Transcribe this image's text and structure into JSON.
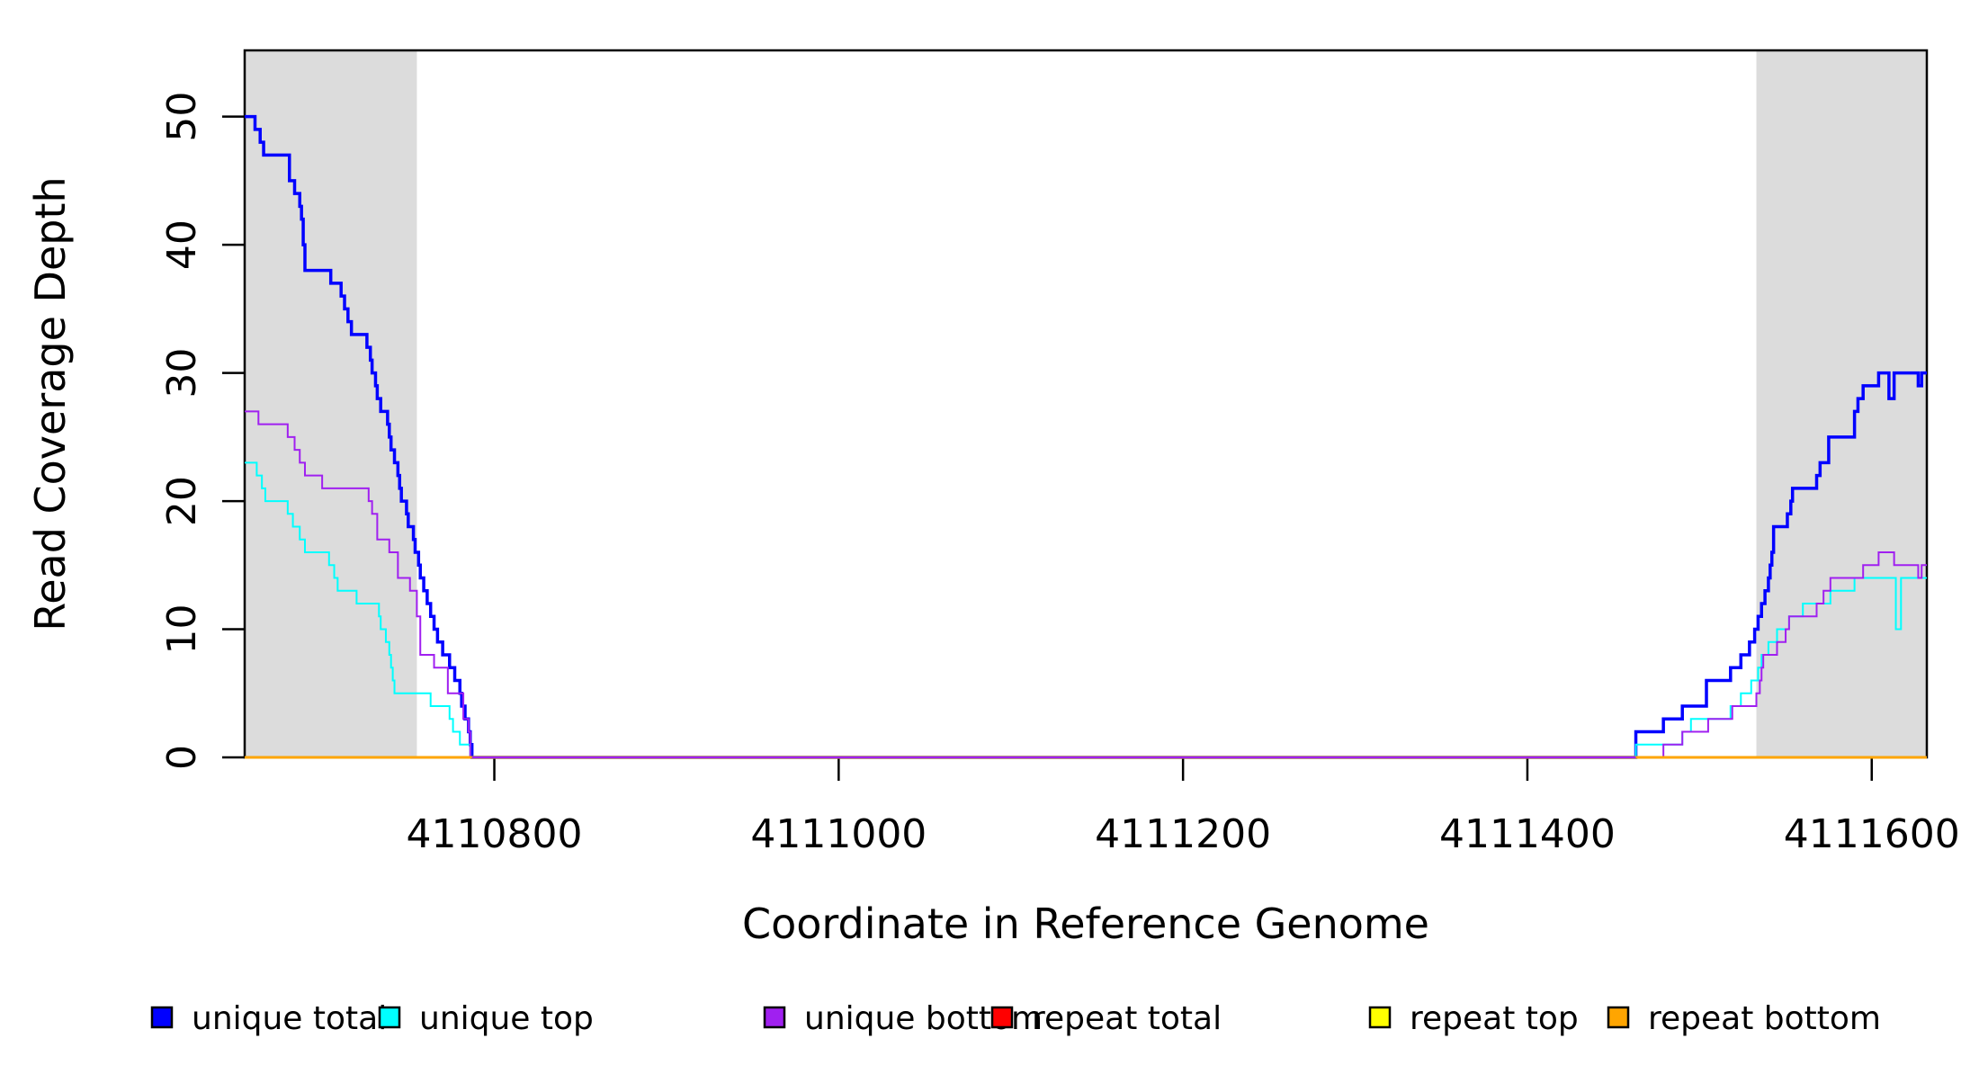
{
  "chart_data": {
    "type": "line",
    "subtype": "step",
    "title": "",
    "xlabel": "Coordinate in Reference Genome",
    "ylabel": "Read Coverage Depth",
    "xlim": [
      4110655,
      4111632
    ],
    "ylim": [
      0,
      55.17
    ],
    "x_ticks": [
      4110800,
      4111000,
      4111200,
      4111400,
      4111600
    ],
    "y_ticks": [
      0,
      10,
      20,
      30,
      40,
      50
    ],
    "grid": false,
    "box": true,
    "shade_color": "#DCDCDC",
    "shaded_regions": [
      {
        "x1": 4110655,
        "x2": 4110755
      },
      {
        "x1": 4111533,
        "x2": 4111632
      }
    ],
    "series": [
      {
        "name": "unique total",
        "color": "#0000FF",
        "width": 3.5,
        "points": [
          [
            4110655,
            50
          ],
          [
            4110661,
            49
          ],
          [
            4110664,
            48
          ],
          [
            4110666,
            47
          ],
          [
            4110681,
            45
          ],
          [
            4110684,
            44
          ],
          [
            4110687,
            43
          ],
          [
            4110688,
            42
          ],
          [
            4110689,
            40
          ],
          [
            4110690,
            38
          ],
          [
            4110705,
            37
          ],
          [
            4110711,
            36
          ],
          [
            4110713,
            35
          ],
          [
            4110715,
            34
          ],
          [
            4110717,
            33
          ],
          [
            4110726,
            32
          ],
          [
            4110728,
            31
          ],
          [
            4110729,
            30
          ],
          [
            4110731,
            29
          ],
          [
            4110732,
            28
          ],
          [
            4110734,
            27
          ],
          [
            4110738,
            26
          ],
          [
            4110739,
            25
          ],
          [
            4110740,
            24
          ],
          [
            4110742,
            23
          ],
          [
            4110744,
            22
          ],
          [
            4110745,
            21
          ],
          [
            4110746,
            20
          ],
          [
            4110749,
            19
          ],
          [
            4110750,
            18
          ],
          [
            4110753,
            17
          ],
          [
            4110754,
            16
          ],
          [
            4110756,
            15
          ],
          [
            4110757,
            14
          ],
          [
            4110759,
            13
          ],
          [
            4110761,
            12
          ],
          [
            4110763,
            11
          ],
          [
            4110765,
            10
          ],
          [
            4110767,
            9
          ],
          [
            4110770,
            8
          ],
          [
            4110774,
            7
          ],
          [
            4110777,
            6
          ],
          [
            4110780,
            5
          ],
          [
            4110781,
            4
          ],
          [
            4110783,
            3
          ],
          [
            4110785,
            2
          ],
          [
            4110786,
            1
          ],
          [
            4110787,
            0
          ],
          [
            4111463,
            2
          ],
          [
            4111479,
            3
          ],
          [
            4111490,
            4
          ],
          [
            4111504,
            6
          ],
          [
            4111518,
            7
          ],
          [
            4111524,
            8
          ],
          [
            4111529,
            9
          ],
          [
            4111532,
            10
          ],
          [
            4111534,
            11
          ],
          [
            4111536,
            12
          ],
          [
            4111538,
            13
          ],
          [
            4111540,
            14
          ],
          [
            4111541,
            15
          ],
          [
            4111542,
            16
          ],
          [
            4111543,
            18
          ],
          [
            4111551,
            19
          ],
          [
            4111553,
            20
          ],
          [
            4111554,
            21
          ],
          [
            4111568,
            22
          ],
          [
            4111570,
            23
          ],
          [
            4111575,
            25
          ],
          [
            4111590,
            27
          ],
          [
            4111592,
            28
          ],
          [
            4111595,
            29
          ],
          [
            4111604,
            30
          ],
          [
            4111610,
            28
          ],
          [
            4111613,
            30
          ],
          [
            4111627,
            29
          ],
          [
            4111629,
            30
          ]
        ]
      },
      {
        "name": "unique top",
        "color": "#00FFFF",
        "width": 2,
        "points": [
          [
            4110655,
            23
          ],
          [
            4110662,
            22
          ],
          [
            4110665,
            21
          ],
          [
            4110667,
            20
          ],
          [
            4110680,
            19
          ],
          [
            4110683,
            18
          ],
          [
            4110687,
            17
          ],
          [
            4110690,
            16
          ],
          [
            4110704,
            15
          ],
          [
            4110707,
            14
          ],
          [
            4110709,
            13
          ],
          [
            4110720,
            12
          ],
          [
            4110733,
            11
          ],
          [
            4110734,
            10
          ],
          [
            4110737,
            9
          ],
          [
            4110739,
            8
          ],
          [
            4110740,
            7
          ],
          [
            4110741,
            6
          ],
          [
            4110742,
            5
          ],
          [
            4110763,
            4
          ],
          [
            4110774,
            3
          ],
          [
            4110776,
            2
          ],
          [
            4110780,
            1
          ],
          [
            4110786,
            0
          ],
          [
            4111463,
            1
          ],
          [
            4111490,
            2
          ],
          [
            4111495,
            3
          ],
          [
            4111518,
            4
          ],
          [
            4111524,
            5
          ],
          [
            4111530,
            6
          ],
          [
            4111534,
            7
          ],
          [
            4111536,
            8
          ],
          [
            4111540,
            9
          ],
          [
            4111545,
            10
          ],
          [
            4111552,
            11
          ],
          [
            4111560,
            12
          ],
          [
            4111576,
            13
          ],
          [
            4111590,
            14
          ],
          [
            4111614,
            10
          ],
          [
            4111617,
            14
          ]
        ]
      },
      {
        "name": "unique bottom",
        "color": "#A020F0",
        "width": 2,
        "points": [
          [
            4110655,
            27
          ],
          [
            4110663,
            26
          ],
          [
            4110680,
            25
          ],
          [
            4110684,
            24
          ],
          [
            4110687,
            23
          ],
          [
            4110690,
            22
          ],
          [
            4110700,
            21
          ],
          [
            4110727,
            20
          ],
          [
            4110729,
            19
          ],
          [
            4110732,
            17
          ],
          [
            4110739,
            16
          ],
          [
            4110744,
            14
          ],
          [
            4110751,
            13
          ],
          [
            4110755,
            11
          ],
          [
            4110757,
            8
          ],
          [
            4110765,
            7
          ],
          [
            4110773,
            5
          ],
          [
            4110782,
            3
          ],
          [
            4110785,
            2
          ],
          [
            4110786,
            0
          ],
          [
            4111479,
            1
          ],
          [
            4111490,
            2
          ],
          [
            4111505,
            3
          ],
          [
            4111519,
            4
          ],
          [
            4111533,
            5
          ],
          [
            4111535,
            6
          ],
          [
            4111536,
            7
          ],
          [
            4111537,
            8
          ],
          [
            4111545,
            9
          ],
          [
            4111550,
            10
          ],
          [
            4111552,
            11
          ],
          [
            4111568,
            12
          ],
          [
            4111572,
            13
          ],
          [
            4111576,
            14
          ],
          [
            4111595,
            15
          ],
          [
            4111604,
            16
          ],
          [
            4111613,
            15
          ],
          [
            4111627,
            14
          ],
          [
            4111629,
            15
          ]
        ]
      },
      {
        "name": "repeat total",
        "color": "#FF0000",
        "width": 2.5,
        "points": [
          [
            4110655,
            0
          ]
        ]
      },
      {
        "name": "repeat top",
        "color": "#FFFF00",
        "width": 2.5,
        "points": [
          [
            4110655,
            0
          ]
        ]
      },
      {
        "name": "repeat bottom",
        "color": "#FFA500",
        "width": 2.8,
        "points": [
          [
            4110655,
            0
          ]
        ]
      }
    ],
    "zero_overlay": {
      "series": "unique bottom",
      "color": "#A020F0",
      "width": 2,
      "x1": 4110787,
      "x2": 4111463,
      "y": 0
    },
    "legend": {
      "position": "bottom",
      "entries": [
        {
          "label": "unique total",
          "color": "#0000FF"
        },
        {
          "label": "unique top",
          "color": "#00FFFF"
        },
        {
          "label": "unique bottom",
          "color": "#A020F0"
        },
        {
          "label": "repeat total",
          "color": "#FF0000"
        },
        {
          "label": "repeat top",
          "color": "#FFFF00"
        },
        {
          "label": "repeat bottom",
          "color": "#FFA500"
        }
      ]
    }
  }
}
